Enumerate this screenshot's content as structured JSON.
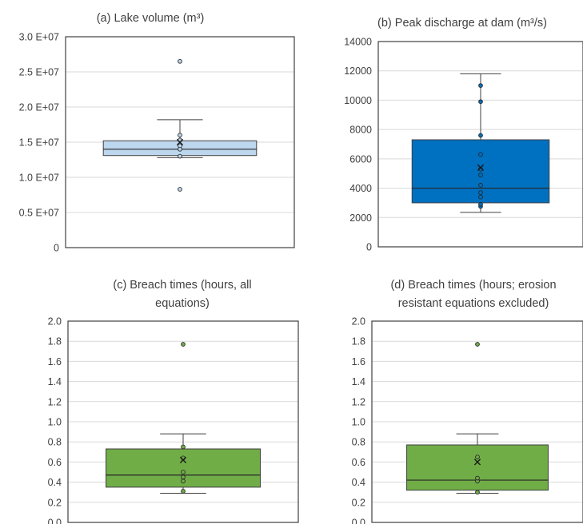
{
  "chart_data": [
    {
      "type": "box",
      "title": "(a) Lake volume (m³)",
      "ylim": [
        0,
        30000000
      ],
      "yticks": [
        0,
        5000000,
        10000000,
        15000000,
        20000000,
        25000000,
        30000000
      ],
      "ytick_labels": [
        "0",
        "0.5 E+07",
        "1.0 E+07",
        "1.5 E+07",
        "2.0 E+07",
        "2.5 E+07",
        "3.0 E+07"
      ],
      "grid": true,
      "box": {
        "whisker_low": 12800000,
        "q1": 13100000,
        "median": 14000000,
        "q3": 15200000,
        "whisker_high": 18200000,
        "mean": 15000000
      },
      "points": [
        8300000,
        13000000,
        14000000,
        14500000,
        15300000,
        16000000,
        26500000
      ],
      "colors": {
        "fill": "#bdd7ee",
        "stroke": "#404040",
        "point_fill": "#bdd7ee"
      }
    },
    {
      "type": "box",
      "title": "(b) Peak discharge at dam (m³/s)",
      "ylim": [
        0,
        14000
      ],
      "yticks": [
        0,
        2000,
        4000,
        6000,
        8000,
        10000,
        12000,
        14000
      ],
      "ytick_labels": [
        "0",
        "2000",
        "4000",
        "6000",
        "8000",
        "10000",
        "12000",
        "14000"
      ],
      "grid": true,
      "box": {
        "whisker_low": 2350,
        "q1": 3000,
        "median": 4000,
        "q3": 7300,
        "whisker_high": 11800,
        "mean": 5400
      },
      "points": [
        2750,
        2900,
        3400,
        3700,
        4200,
        4900,
        5300,
        6300,
        7600,
        9900,
        11000
      ],
      "colors": {
        "fill": "#0070c0",
        "stroke": "#404040",
        "point_fill": "#0070c0"
      }
    },
    {
      "type": "box",
      "title": [
        "(c) Breach times (hours, all",
        "equations)"
      ],
      "ylim": [
        0,
        2.0
      ],
      "yticks": [
        0,
        0.2,
        0.4,
        0.6,
        0.8,
        1.0,
        1.2,
        1.4,
        1.6,
        1.8,
        2.0
      ],
      "ytick_labels": [
        "0.0",
        "0.2",
        "0.4",
        "0.6",
        "0.8",
        "1.0",
        "1.2",
        "1.4",
        "1.6",
        "1.8",
        "2.0"
      ],
      "grid": true,
      "box": {
        "whisker_low": 0.29,
        "q1": 0.35,
        "median": 0.47,
        "q3": 0.73,
        "whisker_high": 0.88,
        "mean": 0.62
      },
      "points": [
        0.31,
        0.41,
        0.45,
        0.5,
        0.64,
        0.75,
        1.77
      ],
      "colors": {
        "fill": "#70ad47",
        "stroke": "#404040",
        "point_fill": "#70ad47"
      }
    },
    {
      "type": "box",
      "title": [
        "(d) Breach times (hours; erosion",
        "resistant equations excluded)"
      ],
      "ylim": [
        0,
        2.0
      ],
      "yticks": [
        0,
        0.2,
        0.4,
        0.6,
        0.8,
        1.0,
        1.2,
        1.4,
        1.6,
        1.8,
        2.0
      ],
      "ytick_labels": [
        "0.0",
        "0.2",
        "0.4",
        "0.6",
        "0.8",
        "1.0",
        "1.2",
        "1.4",
        "1.6",
        "1.8",
        "2.0"
      ],
      "grid": true,
      "box": {
        "whisker_low": 0.29,
        "q1": 0.32,
        "median": 0.42,
        "q3": 0.77,
        "whisker_high": 0.88,
        "mean": 0.6
      },
      "points": [
        0.3,
        0.41,
        0.44,
        0.65,
        1.77
      ],
      "colors": {
        "fill": "#70ad47",
        "stroke": "#404040",
        "point_fill": "#70ad47"
      }
    }
  ]
}
